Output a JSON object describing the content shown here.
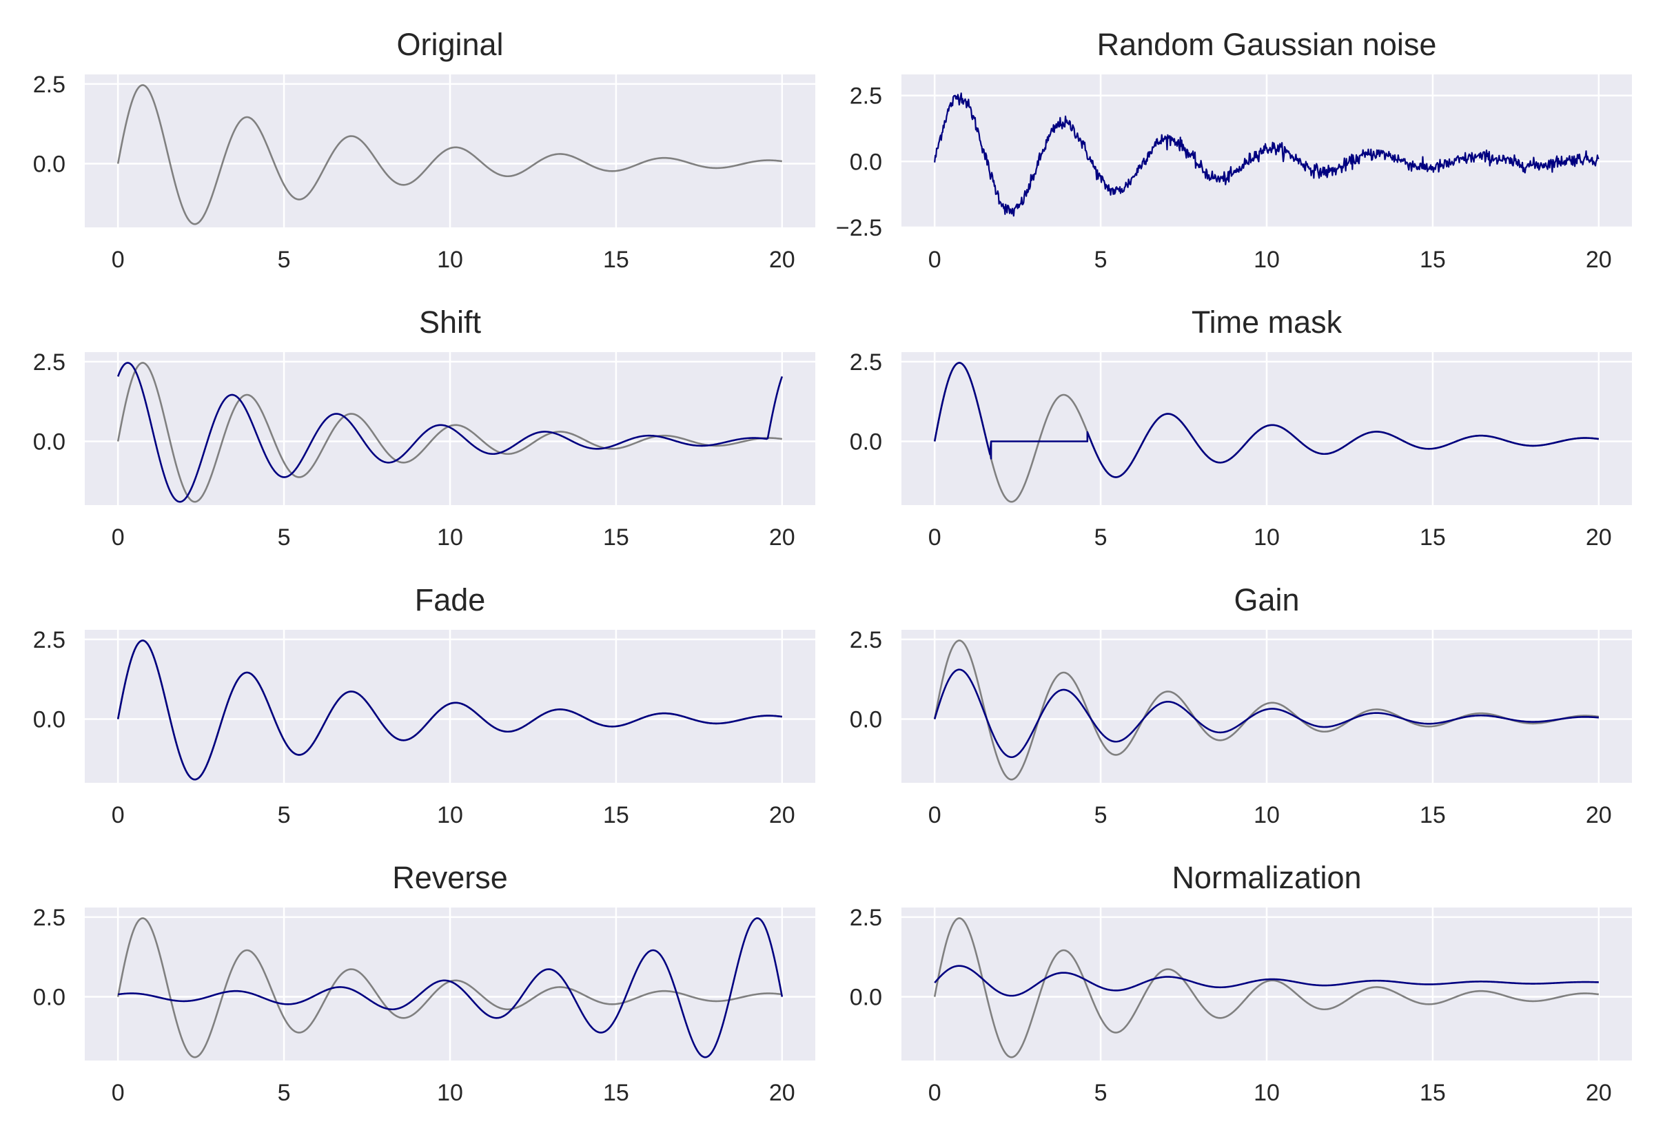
{
  "colors": {
    "background": "#ffffff",
    "axes_face": "#eaeaf2",
    "grid": "#ffffff",
    "original_line": "#808080",
    "augmented_line": "#000080",
    "text": "#262626"
  },
  "signal": {
    "formula": "2.8*exp(-t/6)*sin(2*t)",
    "t_range": [
      0,
      20
    ]
  },
  "chart_data": [
    {
      "type": "line",
      "title": "Original",
      "xlim": [
        -1,
        21
      ],
      "ylim": [
        -2.0,
        2.8
      ],
      "xticks": [
        "0",
        "5",
        "10",
        "15",
        "20"
      ],
      "yticks": [
        "2.5",
        "0.0"
      ],
      "grid": true,
      "series": [
        {
          "transform": "original",
          "color": "#808080"
        }
      ]
    },
    {
      "type": "line",
      "title": "Random Gaussian noise",
      "xlim": [
        -1,
        21
      ],
      "ylim": [
        -2.5,
        3.3
      ],
      "xticks": [
        "0",
        "5",
        "10",
        "15",
        "20"
      ],
      "yticks": [
        "2.5",
        "0.0",
        "−2.5"
      ],
      "grid": true,
      "series": [
        {
          "transform": "noise",
          "noise_std": 0.12,
          "color": "#000080"
        }
      ]
    },
    {
      "type": "line",
      "title": "Shift",
      "xlim": [
        -1,
        21
      ],
      "ylim": [
        -2.0,
        2.8
      ],
      "xticks": [
        "0",
        "5",
        "10",
        "15",
        "20"
      ],
      "yticks": [
        "2.5",
        "0.0"
      ],
      "grid": true,
      "series": [
        {
          "transform": "original",
          "color": "#808080"
        },
        {
          "transform": "shift",
          "shift": 0.45,
          "color": "#000080"
        }
      ]
    },
    {
      "type": "line",
      "title": "Time mask",
      "xlim": [
        -1,
        21
      ],
      "ylim": [
        -2.0,
        2.8
      ],
      "xticks": [
        "0",
        "5",
        "10",
        "15",
        "20"
      ],
      "yticks": [
        "2.5",
        "0.0"
      ],
      "grid": true,
      "series": [
        {
          "transform": "original",
          "color": "#808080"
        },
        {
          "transform": "mask",
          "mask": [
            1.7,
            4.6
          ],
          "color": "#000080"
        }
      ]
    },
    {
      "type": "line",
      "title": "Fade",
      "xlim": [
        -1,
        21
      ],
      "ylim": [
        -2.0,
        2.8
      ],
      "xticks": [
        "0",
        "5",
        "10",
        "15",
        "20"
      ],
      "yticks": [
        "2.5",
        "0.0"
      ],
      "grid": true,
      "series": [
        {
          "transform": "original",
          "color": "#808080"
        },
        {
          "transform": "original",
          "color": "#000080"
        }
      ]
    },
    {
      "type": "line",
      "title": "Gain",
      "xlim": [
        -1,
        21
      ],
      "ylim": [
        -2.0,
        2.8
      ],
      "xticks": [
        "0",
        "5",
        "10",
        "15",
        "20"
      ],
      "yticks": [
        "2.5",
        "0.0"
      ],
      "grid": true,
      "series": [
        {
          "transform": "original",
          "color": "#808080"
        },
        {
          "transform": "gain",
          "gain": 0.63,
          "color": "#000080"
        }
      ]
    },
    {
      "type": "line",
      "title": "Reverse",
      "xlim": [
        -1,
        21
      ],
      "ylim": [
        -2.0,
        2.8
      ],
      "xticks": [
        "0",
        "5",
        "10",
        "15",
        "20"
      ],
      "yticks": [
        "2.5",
        "0.0"
      ],
      "grid": true,
      "series": [
        {
          "transform": "original",
          "color": "#808080"
        },
        {
          "transform": "reverse",
          "color": "#000080"
        }
      ]
    },
    {
      "type": "line",
      "title": "Normalization",
      "xlim": [
        -1,
        21
      ],
      "ylim": [
        -2.0,
        2.8
      ],
      "xticks": [
        "0",
        "5",
        "10",
        "15",
        "20"
      ],
      "yticks": [
        "2.5",
        "0.0"
      ],
      "grid": true,
      "series": [
        {
          "transform": "original",
          "color": "#808080"
        },
        {
          "transform": "normalize",
          "scale": 0.215,
          "offset": 0.44,
          "color": "#000080"
        }
      ]
    }
  ]
}
